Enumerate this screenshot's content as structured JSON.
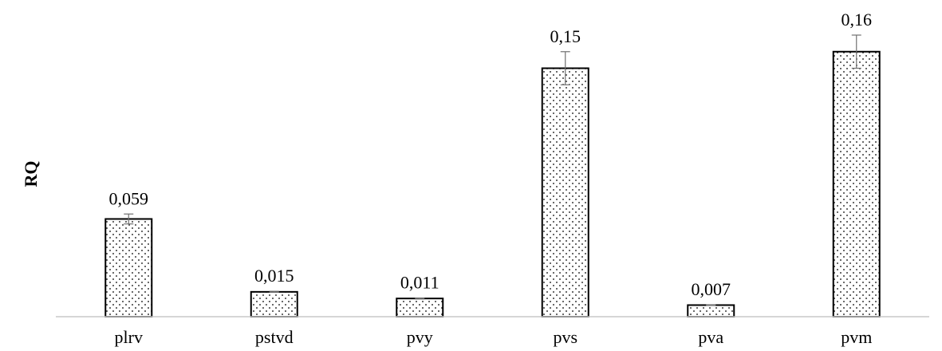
{
  "chart_data": {
    "type": "bar",
    "title": "",
    "xlabel": "",
    "ylabel": "RQ",
    "categories": [
      "plrv",
      "pstvd",
      "pvy",
      "pvs",
      "pva",
      "pvm"
    ],
    "values": [
      0.059,
      0.015,
      0.011,
      0.15,
      0.007,
      0.16
    ],
    "value_labels": [
      "0,059",
      "0,015",
      "0,011",
      "0,15",
      "0,007",
      "0,16"
    ],
    "error": [
      0.003,
      0.0003,
      0.0003,
      0.01,
      0.0002,
      0.01
    ],
    "ylim": [
      0,
      0.17
    ],
    "grid": false,
    "legend": "none",
    "bar_fill": "dotted pattern",
    "colors": {
      "bar_border": "#000000",
      "bar_background": "#ffffff",
      "dots": "#000000",
      "axis": "#c8c8c8",
      "error_bar": "#707070"
    }
  }
}
